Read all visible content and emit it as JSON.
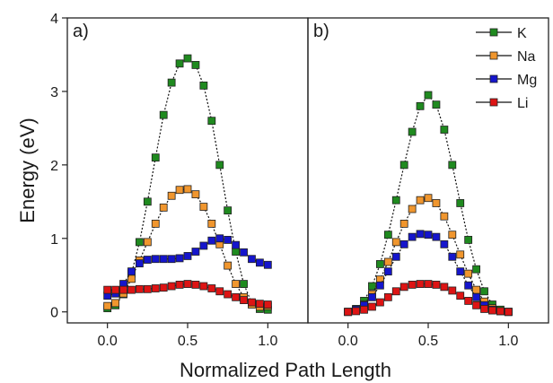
{
  "chart_data": [
    {
      "type": "scatter",
      "panel_label": "a)",
      "xlim": [
        -0.25,
        1.25
      ],
      "ylim": [
        -0.15,
        4.0
      ],
      "x_ticks": [
        "0.0",
        "0.5",
        "1.0"
      ],
      "x_tick_values": [
        0,
        0.5,
        1.0
      ],
      "y_ticks": [
        "0",
        "1",
        "2",
        "3",
        "4"
      ],
      "y_tick_values": [
        0,
        1,
        2,
        3,
        4
      ],
      "series": [
        {
          "name": "K",
          "color": "#1f8a1f",
          "x": [
            0,
            0.05,
            0.1,
            0.15,
            0.2,
            0.25,
            0.3,
            0.35,
            0.4,
            0.45,
            0.5,
            0.55,
            0.6,
            0.65,
            0.7,
            0.75,
            0.8,
            0.85,
            0.9,
            0.95,
            1.0
          ],
          "y": [
            0.05,
            0.09,
            0.24,
            0.52,
            0.95,
            1.5,
            2.1,
            2.68,
            3.12,
            3.38,
            3.45,
            3.36,
            3.08,
            2.6,
            2.0,
            1.38,
            0.82,
            0.38,
            0.12,
            0.04,
            0.03
          ]
        },
        {
          "name": "Na",
          "color": "#f0962e",
          "x": [
            0,
            0.05,
            0.1,
            0.15,
            0.2,
            0.25,
            0.3,
            0.35,
            0.4,
            0.45,
            0.5,
            0.55,
            0.6,
            0.65,
            0.7,
            0.75,
            0.8,
            0.85,
            0.9,
            0.95,
            1.0
          ],
          "y": [
            0.08,
            0.12,
            0.25,
            0.45,
            0.7,
            0.95,
            1.2,
            1.42,
            1.58,
            1.66,
            1.67,
            1.6,
            1.43,
            1.2,
            0.92,
            0.63,
            0.38,
            0.2,
            0.1,
            0.07,
            0.08
          ]
        },
        {
          "name": "Mg",
          "color": "#1515cc",
          "x": [
            0,
            0.05,
            0.1,
            0.15,
            0.2,
            0.25,
            0.3,
            0.35,
            0.4,
            0.45,
            0.5,
            0.55,
            0.6,
            0.65,
            0.7,
            0.75,
            0.8,
            0.85,
            0.9,
            0.95,
            1.0
          ],
          "y": [
            0.22,
            0.25,
            0.38,
            0.55,
            0.66,
            0.71,
            0.72,
            0.72,
            0.72,
            0.73,
            0.76,
            0.82,
            0.9,
            0.97,
            1.0,
            0.98,
            0.91,
            0.81,
            0.72,
            0.67,
            0.64
          ]
        },
        {
          "name": "Li",
          "color": "#dd1414",
          "x": [
            0,
            0.05,
            0.1,
            0.15,
            0.2,
            0.25,
            0.3,
            0.35,
            0.4,
            0.45,
            0.5,
            0.55,
            0.6,
            0.65,
            0.7,
            0.75,
            0.8,
            0.85,
            0.9,
            0.95,
            1.0
          ],
          "y": [
            0.3,
            0.3,
            0.3,
            0.3,
            0.31,
            0.31,
            0.32,
            0.33,
            0.35,
            0.37,
            0.38,
            0.37,
            0.35,
            0.32,
            0.28,
            0.24,
            0.2,
            0.16,
            0.13,
            0.11,
            0.1
          ]
        }
      ]
    },
    {
      "type": "scatter",
      "panel_label": "b)",
      "xlim": [
        -0.25,
        1.25
      ],
      "ylim": [
        -0.15,
        4.0
      ],
      "x_ticks": [
        "0.0",
        "0.5",
        "1.0"
      ],
      "x_tick_values": [
        0,
        0.5,
        1.0
      ],
      "series": [
        {
          "name": "K",
          "color": "#1f8a1f",
          "x": [
            0,
            0.05,
            0.1,
            0.15,
            0.2,
            0.25,
            0.3,
            0.35,
            0.4,
            0.45,
            0.5,
            0.55,
            0.6,
            0.65,
            0.7,
            0.75,
            0.8,
            0.85,
            0.9,
            0.95,
            1.0
          ],
          "y": [
            0.0,
            0.04,
            0.15,
            0.35,
            0.65,
            1.05,
            1.52,
            2.0,
            2.45,
            2.8,
            2.95,
            2.82,
            2.48,
            2.0,
            1.48,
            0.98,
            0.58,
            0.28,
            0.1,
            0.03,
            0.0
          ]
        },
        {
          "name": "Na",
          "color": "#f0962e",
          "x": [
            0,
            0.05,
            0.1,
            0.15,
            0.2,
            0.25,
            0.3,
            0.35,
            0.4,
            0.45,
            0.5,
            0.55,
            0.6,
            0.65,
            0.7,
            0.75,
            0.8,
            0.85,
            0.9,
            0.95,
            1.0
          ],
          "y": [
            0.0,
            0.03,
            0.1,
            0.24,
            0.44,
            0.68,
            0.95,
            1.2,
            1.4,
            1.52,
            1.55,
            1.48,
            1.3,
            1.05,
            0.78,
            0.52,
            0.3,
            0.14,
            0.05,
            0.01,
            0.0
          ]
        },
        {
          "name": "Mg",
          "color": "#1515cc",
          "x": [
            0,
            0.05,
            0.1,
            0.15,
            0.2,
            0.25,
            0.3,
            0.35,
            0.4,
            0.45,
            0.5,
            0.55,
            0.6,
            0.65,
            0.7,
            0.75,
            0.8,
            0.85,
            0.9,
            0.95,
            1.0
          ],
          "y": [
            0.0,
            0.03,
            0.09,
            0.2,
            0.36,
            0.55,
            0.75,
            0.92,
            1.02,
            1.06,
            1.05,
            1.02,
            0.92,
            0.75,
            0.55,
            0.36,
            0.2,
            0.09,
            0.03,
            0.01,
            0.0
          ]
        },
        {
          "name": "Li",
          "color": "#dd1414",
          "x": [
            0,
            0.05,
            0.1,
            0.15,
            0.2,
            0.25,
            0.3,
            0.35,
            0.4,
            0.45,
            0.5,
            0.55,
            0.6,
            0.65,
            0.7,
            0.75,
            0.8,
            0.85,
            0.9,
            0.95,
            1.0
          ],
          "y": [
            0.0,
            0.01,
            0.03,
            0.07,
            0.13,
            0.2,
            0.28,
            0.34,
            0.37,
            0.38,
            0.38,
            0.37,
            0.34,
            0.29,
            0.22,
            0.15,
            0.09,
            0.04,
            0.02,
            0.01,
            0.0
          ]
        }
      ]
    }
  ],
  "axes": {
    "xlabel": "Normalized Path Length",
    "ylabel": "Energy (eV)"
  },
  "legend": {
    "placement": "top-right",
    "entries": [
      {
        "label": "K",
        "color": "#1f8a1f"
      },
      {
        "label": "Na",
        "color": "#f0962e"
      },
      {
        "label": "Mg",
        "color": "#1515cc"
      },
      {
        "label": "Li",
        "color": "#dd1414"
      }
    ]
  }
}
